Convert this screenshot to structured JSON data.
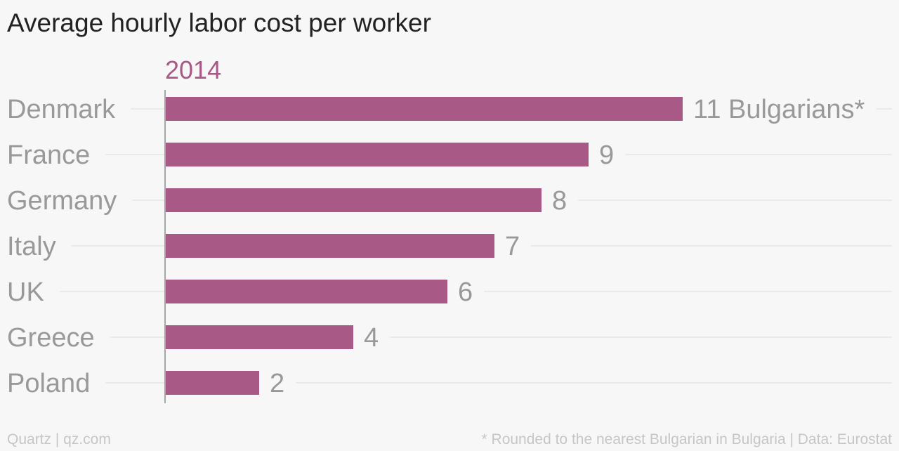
{
  "colors": {
    "bar": "#a85986",
    "series_label": "#a85986",
    "category_text": "#999999",
    "value_text": "#999999",
    "gridline": "#e6e6e6",
    "axis": "#a6a6a6",
    "title": "#222222",
    "footer": "#c6c6c6",
    "background": "#f7f7f7"
  },
  "footer": {
    "source": "Quartz | qz.com",
    "note": "* Rounded to the nearest Bulgarian in Bulgaria | Data: Eurostat"
  },
  "chart_data": {
    "type": "bar",
    "orientation": "horizontal",
    "title": "Average hourly labor cost per worker",
    "subtitle": "",
    "xlabel": "",
    "ylabel": "",
    "categories": [
      "Denmark",
      "France",
      "Germany",
      "Italy",
      "UK",
      "Greece",
      "Poland"
    ],
    "series": [
      {
        "name": "2014",
        "values": [
          11,
          9,
          8,
          7,
          6,
          4,
          2
        ],
        "labels": [
          "11 Bulgarians*",
          "9",
          "8",
          "7",
          "6",
          "4",
          "2"
        ]
      }
    ],
    "xlim": [
      0,
      16.5
    ],
    "grid": true,
    "legend": "none"
  }
}
